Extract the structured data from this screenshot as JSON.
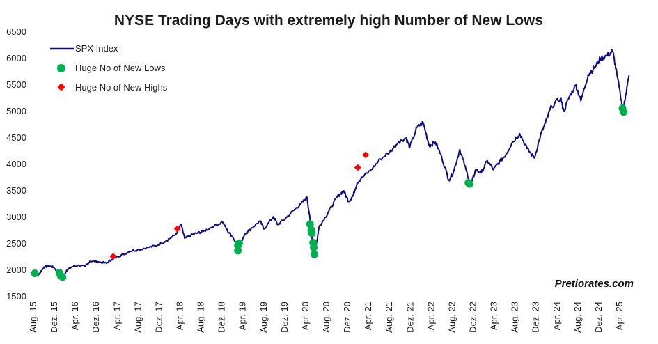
{
  "colors": {
    "line": "#0b0b80",
    "lows": "#00b050",
    "highs": "#ff0000"
  },
  "chart_data": {
    "type": "line",
    "title": "NYSE Trading Days with extremely high Number of New Lows",
    "xlabel": "",
    "ylabel": "",
    "ylim": [
      1500,
      6500
    ],
    "y_ticks": [
      1500,
      2000,
      2500,
      3000,
      3500,
      4000,
      4500,
      5000,
      5500,
      6000,
      6500
    ],
    "x_range": [
      "2015-08",
      "2025-05"
    ],
    "x_tick_labels": [
      "Aug. 15",
      "Dez. 15",
      "Apr. 16",
      "Dez. 16",
      "Apr. 17",
      "Aug. 17",
      "Dez. 17",
      "Apr. 18",
      "Aug. 18",
      "Dez. 18",
      "Apr. 19",
      "Aug. 19",
      "Dez. 19",
      "Apr. 20",
      "Aug. 20",
      "Dez. 20",
      "Apr. 21",
      "Aug. 21",
      "Dez. 21",
      "Apr. 22",
      "Aug. 22",
      "Dez. 22",
      "Apr. 23",
      "Aug. 23",
      "Dez. 23",
      "Apr. 24",
      "Aug. 24",
      "Dez. 24",
      "Apr. 25"
    ],
    "legend": [
      "SPX Index",
      "Huge No of New Lows",
      "Huge No of New Highs"
    ],
    "legend_position": "top-left",
    "watermark": "Pretiorates.com",
    "series": [
      {
        "name": "SPX Index",
        "type": "line",
        "points": [
          [
            2015.58,
            1970
          ],
          [
            2015.64,
            1900
          ],
          [
            2015.72,
            1930
          ],
          [
            2015.8,
            2060
          ],
          [
            2015.88,
            2080
          ],
          [
            2015.96,
            2050
          ],
          [
            2016.04,
            1940
          ],
          [
            2016.1,
            1850
          ],
          [
            2016.17,
            2000
          ],
          [
            2016.25,
            2060
          ],
          [
            2016.35,
            2090
          ],
          [
            2016.47,
            2070
          ],
          [
            2016.55,
            2170
          ],
          [
            2016.68,
            2160
          ],
          [
            2016.82,
            2130
          ],
          [
            2016.9,
            2200
          ],
          [
            2017.0,
            2260
          ],
          [
            2017.1,
            2300
          ],
          [
            2017.2,
            2360
          ],
          [
            2017.35,
            2390
          ],
          [
            2017.5,
            2430
          ],
          [
            2017.65,
            2470
          ],
          [
            2017.8,
            2560
          ],
          [
            2017.95,
            2670
          ],
          [
            2018.04,
            2860
          ],
          [
            2018.1,
            2600
          ],
          [
            2018.2,
            2660
          ],
          [
            2018.3,
            2700
          ],
          [
            2018.4,
            2730
          ],
          [
            2018.55,
            2820
          ],
          [
            2018.72,
            2910
          ],
          [
            2018.8,
            2740
          ],
          [
            2018.88,
            2640
          ],
          [
            2018.98,
            2420
          ],
          [
            2019.08,
            2680
          ],
          [
            2019.2,
            2800
          ],
          [
            2019.33,
            2930
          ],
          [
            2019.4,
            2780
          ],
          [
            2019.55,
            3010
          ],
          [
            2019.62,
            2860
          ],
          [
            2019.75,
            2980
          ],
          [
            2019.9,
            3150
          ],
          [
            2020.0,
            3250
          ],
          [
            2020.1,
            3380
          ],
          [
            2020.15,
            2960
          ],
          [
            2020.22,
            2240
          ],
          [
            2020.3,
            2830
          ],
          [
            2020.4,
            3000
          ],
          [
            2020.5,
            3200
          ],
          [
            2020.6,
            3400
          ],
          [
            2020.7,
            3500
          ],
          [
            2020.78,
            3300
          ],
          [
            2020.85,
            3400
          ],
          [
            2020.92,
            3650
          ],
          [
            2021.0,
            3750
          ],
          [
            2021.15,
            3900
          ],
          [
            2021.3,
            4100
          ],
          [
            2021.45,
            4230
          ],
          [
            2021.6,
            4430
          ],
          [
            2021.72,
            4500
          ],
          [
            2021.78,
            4320
          ],
          [
            2021.9,
            4700
          ],
          [
            2022.0,
            4790
          ],
          [
            2022.1,
            4350
          ],
          [
            2022.2,
            4420
          ],
          [
            2022.3,
            4150
          ],
          [
            2022.42,
            3700
          ],
          [
            2022.5,
            3870
          ],
          [
            2022.6,
            4280
          ],
          [
            2022.7,
            3900
          ],
          [
            2022.78,
            3600
          ],
          [
            2022.86,
            3900
          ],
          [
            2022.95,
            3840
          ],
          [
            2023.05,
            4070
          ],
          [
            2023.15,
            3900
          ],
          [
            2023.25,
            4050
          ],
          [
            2023.35,
            4180
          ],
          [
            2023.45,
            4400
          ],
          [
            2023.58,
            4580
          ],
          [
            2023.7,
            4300
          ],
          [
            2023.82,
            4120
          ],
          [
            2023.92,
            4550
          ],
          [
            2024.0,
            4780
          ],
          [
            2024.1,
            5100
          ],
          [
            2024.25,
            5250
          ],
          [
            2024.3,
            5000
          ],
          [
            2024.4,
            5300
          ],
          [
            2024.5,
            5500
          ],
          [
            2024.58,
            5200
          ],
          [
            2024.7,
            5700
          ],
          [
            2024.8,
            5820
          ],
          [
            2024.9,
            6000
          ],
          [
            2025.0,
            6050
          ],
          [
            2025.1,
            6140
          ],
          [
            2025.17,
            5700
          ],
          [
            2025.27,
            5000
          ],
          [
            2025.31,
            5300
          ],
          [
            2025.37,
            5680
          ]
        ]
      },
      {
        "name": "Huge No of New Lows",
        "type": "scatter",
        "points": [
          [
            2015.65,
            1940
          ],
          [
            2016.05,
            1950
          ],
          [
            2016.07,
            1900
          ],
          [
            2016.1,
            1870
          ],
          [
            2018.97,
            2470
          ],
          [
            2018.97,
            2370
          ],
          [
            2018.99,
            2510
          ],
          [
            2020.15,
            2870
          ],
          [
            2020.17,
            2760
          ],
          [
            2020.18,
            2700
          ],
          [
            2020.2,
            2520
          ],
          [
            2020.21,
            2430
          ],
          [
            2020.22,
            2300
          ],
          [
            2022.74,
            3650
          ],
          [
            2022.76,
            3630
          ],
          [
            2025.26,
            5060
          ],
          [
            2025.28,
            4990
          ]
        ]
      },
      {
        "name": "Huge No of New Highs",
        "type": "scatter",
        "points": [
          [
            2016.93,
            2260
          ],
          [
            2017.98,
            2780
          ],
          [
            2020.93,
            3940
          ],
          [
            2021.06,
            4180
          ]
        ]
      }
    ]
  }
}
